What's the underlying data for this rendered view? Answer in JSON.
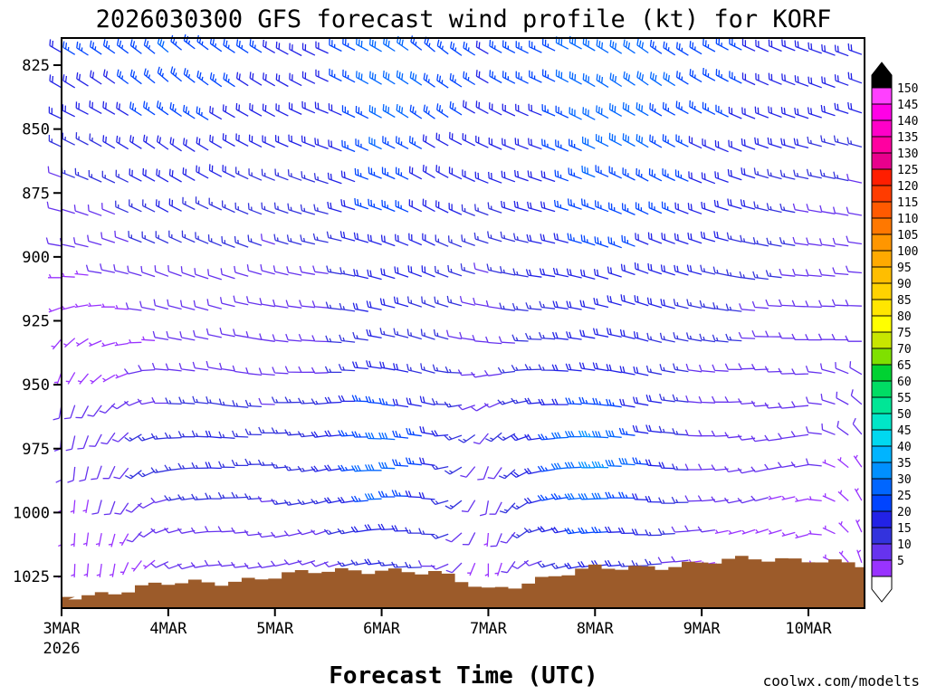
{
  "colors": {
    "terrain": "#9C5B2A",
    "watermark": "#FA8072",
    "frame": "#000000",
    "background": "#FFFFFF"
  },
  "chart_data": {
    "type": "wind-barb-time-height",
    "title": "2026030300 GFS forecast wind profile (kt) for KORF",
    "xlabel": "Forecast Time (UTC)",
    "watermark": "coolwx.com/modelts",
    "model": "GFS",
    "station": "KORF",
    "init_time": "2026030300",
    "units": "kt",
    "x_ticks": [
      "3MAR",
      "4MAR",
      "5MAR",
      "6MAR",
      "7MAR",
      "8MAR",
      "9MAR",
      "10MAR"
    ],
    "x_year": "2026",
    "y_ticks": [
      825,
      850,
      875,
      900,
      925,
      950,
      975,
      1000,
      1025
    ],
    "y_range_hpa": [
      814,
      1037
    ],
    "forecast_hours_range": [
      0,
      180
    ],
    "data_time_step_hours": 12,
    "levels_hpa": [
      820,
      832.5,
      845,
      857.5,
      870,
      882.5,
      895,
      907.5,
      920,
      932.5,
      945,
      957.5,
      970,
      982.5,
      995,
      1007.5,
      1020
    ],
    "speeds_kt": [
      [
        22,
        25,
        28,
        25,
        22,
        20,
        30,
        25,
        22,
        25,
        30,
        28,
        25,
        22,
        20,
        20
      ],
      [
        20,
        22,
        26,
        24,
        20,
        20,
        32,
        26,
        22,
        25,
        32,
        30,
        25,
        22,
        20,
        18
      ],
      [
        18,
        20,
        25,
        22,
        20,
        18,
        30,
        25,
        20,
        22,
        30,
        28,
        25,
        20,
        18,
        18
      ],
      [
        15,
        18,
        22,
        20,
        18,
        18,
        28,
        22,
        18,
        22,
        28,
        28,
        22,
        20,
        18,
        15
      ],
      [
        12,
        15,
        20,
        18,
        16,
        16,
        25,
        20,
        18,
        20,
        28,
        25,
        22,
        18,
        15,
        12
      ],
      [
        10,
        12,
        18,
        16,
        15,
        15,
        25,
        20,
        15,
        20,
        25,
        25,
        20,
        18,
        12,
        10
      ],
      [
        8,
        10,
        15,
        15,
        12,
        15,
        22,
        18,
        15,
        18,
        25,
        22,
        20,
        15,
        12,
        10
      ],
      [
        6,
        8,
        12,
        12,
        12,
        12,
        20,
        18,
        12,
        18,
        22,
        20,
        18,
        15,
        10,
        8
      ],
      [
        5,
        6,
        10,
        12,
        10,
        12,
        20,
        15,
        10,
        15,
        20,
        20,
        15,
        12,
        10,
        8
      ],
      [
        5,
        5,
        8,
        10,
        10,
        12,
        18,
        15,
        8,
        15,
        20,
        18,
        15,
        12,
        8,
        8
      ],
      [
        6,
        6,
        10,
        12,
        10,
        12,
        20,
        15,
        10,
        15,
        22,
        18,
        12,
        10,
        8,
        8
      ],
      [
        8,
        8,
        12,
        15,
        12,
        15,
        25,
        18,
        10,
        18,
        25,
        20,
        12,
        10,
        8,
        8
      ],
      [
        8,
        10,
        15,
        18,
        15,
        18,
        30,
        20,
        10,
        20,
        35,
        22,
        12,
        10,
        8,
        8
      ],
      [
        8,
        10,
        15,
        18,
        15,
        18,
        32,
        20,
        8,
        22,
        35,
        25,
        12,
        10,
        8,
        6
      ],
      [
        6,
        8,
        12,
        15,
        12,
        15,
        28,
        18,
        8,
        20,
        30,
        22,
        10,
        8,
        6,
        6
      ],
      [
        5,
        6,
        10,
        12,
        10,
        12,
        22,
        15,
        6,
        15,
        25,
        18,
        8,
        6,
        5,
        5
      ],
      [
        5,
        5,
        8,
        10,
        8,
        10,
        18,
        12,
        5,
        12,
        20,
        15,
        6,
        5,
        5,
        5
      ]
    ],
    "dirs_deg": [
      [
        300,
        305,
        310,
        305,
        300,
        295,
        300,
        310,
        300,
        295,
        300,
        305,
        300,
        295,
        290,
        290
      ],
      [
        300,
        305,
        310,
        305,
        300,
        295,
        300,
        305,
        300,
        295,
        300,
        305,
        300,
        295,
        290,
        290
      ],
      [
        295,
        300,
        305,
        300,
        298,
        292,
        298,
        305,
        298,
        292,
        298,
        300,
        298,
        292,
        288,
        288
      ],
      [
        295,
        300,
        305,
        300,
        295,
        290,
        295,
        300,
        295,
        290,
        295,
        300,
        295,
        290,
        285,
        285
      ],
      [
        290,
        295,
        300,
        298,
        292,
        288,
        292,
        300,
        292,
        288,
        292,
        298,
        292,
        288,
        282,
        282
      ],
      [
        285,
        292,
        298,
        295,
        290,
        285,
        290,
        298,
        290,
        285,
        290,
        295,
        290,
        285,
        280,
        280
      ],
      [
        280,
        288,
        295,
        292,
        288,
        282,
        288,
        295,
        288,
        282,
        288,
        292,
        288,
        282,
        278,
        278
      ],
      [
        270,
        282,
        290,
        288,
        285,
        278,
        285,
        292,
        285,
        278,
        285,
        290,
        285,
        278,
        275,
        275
      ],
      [
        250,
        270,
        285,
        285,
        280,
        275,
        282,
        290,
        280,
        275,
        282,
        288,
        282,
        275,
        272,
        272
      ],
      [
        220,
        255,
        280,
        282,
        278,
        272,
        280,
        288,
        275,
        272,
        280,
        285,
        280,
        272,
        270,
        270
      ],
      [
        200,
        240,
        275,
        280,
        275,
        268,
        278,
        285,
        260,
        268,
        278,
        282,
        278,
        268,
        268,
        300
      ],
      [
        190,
        225,
        270,
        278,
        272,
        265,
        275,
        282,
        240,
        265,
        275,
        280,
        275,
        265,
        265,
        310
      ],
      [
        185,
        215,
        265,
        275,
        270,
        262,
        272,
        280,
        220,
        262,
        272,
        278,
        272,
        262,
        262,
        320
      ],
      [
        180,
        205,
        260,
        272,
        268,
        258,
        270,
        278,
        200,
        258,
        270,
        275,
        270,
        258,
        260,
        325
      ],
      [
        180,
        200,
        255,
        270,
        265,
        255,
        268,
        275,
        190,
        255,
        268,
        272,
        268,
        255,
        258,
        330
      ],
      [
        180,
        195,
        250,
        268,
        262,
        252,
        265,
        272,
        185,
        252,
        265,
        270,
        265,
        252,
        255,
        335
      ],
      [
        180,
        190,
        245,
        265,
        260,
        250,
        262,
        270,
        180,
        250,
        262,
        268,
        262,
        250,
        252,
        340
      ]
    ],
    "surface_pressure_hpa": [
      1033,
      1031,
      1028,
      1027,
      1025,
      1023,
      1022,
      1024,
      1030,
      1026,
      1022,
      1021,
      1020,
      1018,
      1018,
      1021
    ],
    "colorbar": {
      "title": "",
      "values": [
        5,
        10,
        15,
        20,
        25,
        30,
        35,
        40,
        45,
        50,
        55,
        60,
        65,
        70,
        75,
        80,
        85,
        90,
        95,
        100,
        105,
        110,
        115,
        120,
        125,
        130,
        135,
        140,
        145,
        150
      ],
      "colors": [
        "#9933FF",
        "#6633EE",
        "#3333DD",
        "#2222E6",
        "#0044FF",
        "#0066FF",
        "#0090FF",
        "#00B4FF",
        "#00D8F0",
        "#00E6C8",
        "#00E696",
        "#00DC64",
        "#00D232",
        "#7FE000",
        "#C8E600",
        "#FFFF00",
        "#FFE600",
        "#FFD200",
        "#FFBE00",
        "#FFAA00",
        "#FF9600",
        "#FF7800",
        "#FF5A00",
        "#FF3C00",
        "#FF1E00",
        "#E8008C",
        "#FF00A0",
        "#FF00C8",
        "#FF00E6",
        "#FF40FF"
      ],
      "over_color": "#000000",
      "under_color": "#FFFFFF"
    }
  }
}
